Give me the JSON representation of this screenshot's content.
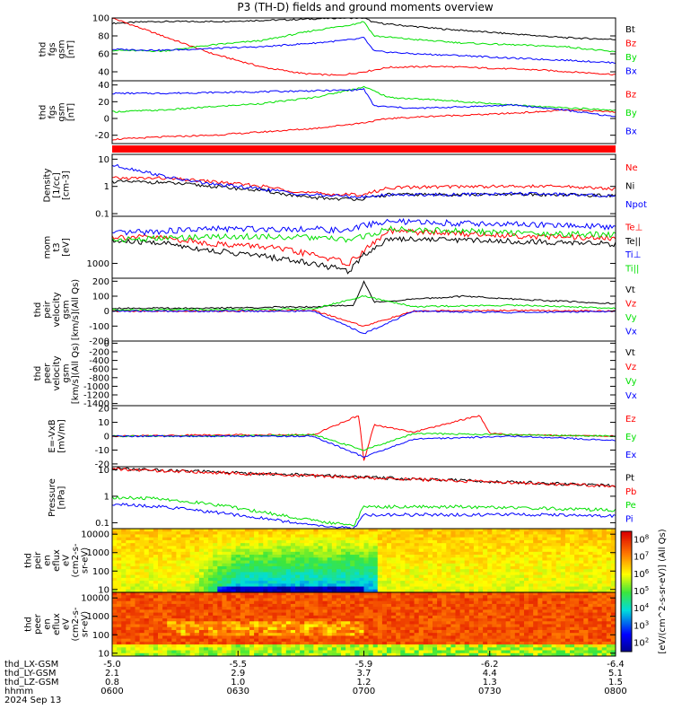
{
  "title": "P3 (TH-D) fields and ground moments overview",
  "colors": {
    "black": "#000000",
    "red": "#ff0000",
    "green": "#00e000",
    "blue": "#0000ff"
  },
  "chart_data": [
    {
      "type": "line",
      "ylabel": [
        "thd",
        "fgs",
        "gsm",
        "[nT]"
      ],
      "ylim": [
        30,
        100
      ],
      "yticks": [
        40,
        60,
        80,
        100
      ],
      "series": [
        {
          "name": "Bt",
          "color": "black",
          "x": [
            0,
            0.08,
            0.2,
            0.35,
            0.45,
            0.5,
            0.52,
            0.55,
            0.65,
            0.8,
            0.9,
            1.0
          ],
          "y": [
            94,
            96,
            96,
            98,
            100,
            100,
            95,
            93,
            88,
            82,
            78,
            76
          ]
        },
        {
          "name": "Bz",
          "color": "red",
          "x": [
            0,
            0.1,
            0.2,
            0.3,
            0.38,
            0.45,
            0.5,
            0.55,
            0.65,
            0.75,
            0.85,
            1.0
          ],
          "y": [
            100,
            80,
            60,
            45,
            38,
            36,
            40,
            45,
            46,
            44,
            42,
            37
          ]
        },
        {
          "name": "By",
          "color": "green",
          "x": [
            0,
            0.1,
            0.2,
            0.3,
            0.4,
            0.48,
            0.5,
            0.52,
            0.6,
            0.7,
            0.8,
            0.9,
            1.0
          ],
          "y": [
            64,
            63,
            70,
            75,
            86,
            93,
            96,
            80,
            76,
            72,
            70,
            68,
            62
          ]
        },
        {
          "name": "Bx",
          "color": "blue",
          "x": [
            0,
            0.1,
            0.2,
            0.3,
            0.4,
            0.48,
            0.5,
            0.52,
            0.6,
            0.7,
            0.8,
            0.9,
            1.0
          ],
          "y": [
            65,
            64,
            66,
            68,
            72,
            76,
            78,
            63,
            60,
            58,
            55,
            53,
            50
          ]
        }
      ]
    },
    {
      "type": "line",
      "ylabel": [
        "thd",
        "fgs",
        "gsm",
        "[nT]"
      ],
      "ylim": [
        -30,
        45
      ],
      "yticks": [
        -20,
        0,
        20,
        40
      ],
      "series": [
        {
          "name": "Bz",
          "color": "red",
          "x": [
            0,
            0.1,
            0.2,
            0.3,
            0.4,
            0.5,
            0.55,
            0.65,
            0.75,
            0.85,
            0.9,
            1.0
          ],
          "y": [
            -25,
            -22,
            -20,
            -16,
            -12,
            -5,
            0,
            3,
            5,
            8,
            10,
            8
          ]
        },
        {
          "name": "By",
          "color": "green",
          "x": [
            0,
            0.1,
            0.2,
            0.3,
            0.4,
            0.48,
            0.5,
            0.55,
            0.65,
            0.75,
            0.85,
            1.0
          ],
          "y": [
            8,
            10,
            14,
            18,
            25,
            35,
            38,
            25,
            22,
            18,
            14,
            10
          ]
        },
        {
          "name": "Bx",
          "color": "blue",
          "x": [
            0,
            0.1,
            0.2,
            0.3,
            0.4,
            0.48,
            0.5,
            0.52,
            0.6,
            0.7,
            0.8,
            0.9,
            1.0
          ],
          "y": [
            30,
            30,
            31,
            32,
            33,
            34,
            35,
            15,
            12,
            14,
            16,
            10,
            2
          ]
        }
      ]
    },
    {
      "type": "line",
      "ylabel": [
        "Density",
        "[1/cc]",
        "[cm-3]"
      ],
      "ylog": true,
      "ylim": [
        0.08,
        15
      ],
      "yticks": [
        0.1,
        1.0,
        10.0
      ],
      "series": [
        {
          "name": "Ne",
          "color": "red",
          "x": [
            0,
            0.1,
            0.2,
            0.3,
            0.38,
            0.45,
            0.5,
            0.55,
            0.7,
            0.8,
            0.9,
            1.0
          ],
          "y": [
            2,
            2,
            1.5,
            1.0,
            0.6,
            0.5,
            0.5,
            0.9,
            1.0,
            1.0,
            1.0,
            0.8
          ]
        },
        {
          "name": "Ni",
          "color": "black",
          "x": [
            0,
            0.1,
            0.2,
            0.3,
            0.38,
            0.45,
            0.5,
            0.55,
            0.7,
            0.8,
            0.9,
            1.0
          ],
          "y": [
            1.5,
            1.4,
            1.0,
            0.7,
            0.4,
            0.35,
            0.35,
            0.5,
            0.5,
            0.5,
            0.5,
            0.45
          ]
        },
        {
          "name": "Npot",
          "color": "blue",
          "x": [
            0,
            0.05,
            0.12,
            0.2,
            0.3,
            0.38,
            0.45,
            0.5,
            0.55,
            0.7,
            0.8,
            0.9,
            1.0
          ],
          "y": [
            6,
            4,
            2,
            1.2,
            0.8,
            0.5,
            0.45,
            0.4,
            0.5,
            0.5,
            0.55,
            0.5,
            0.45
          ]
        }
      ]
    },
    {
      "type": "line",
      "ylabel": [
        "mom",
        "t3",
        "[eV]"
      ],
      "ylog": true,
      "ylim": [
        500,
        9000
      ],
      "yticks": [
        1000
      ],
      "series": [
        {
          "name": "Te⊥",
          "color": "red",
          "x": [
            0,
            0.1,
            0.2,
            0.3,
            0.4,
            0.47,
            0.5,
            0.55,
            0.7,
            0.85,
            1.0
          ],
          "y": [
            3500,
            3300,
            2500,
            2200,
            1500,
            1000,
            1800,
            4500,
            4000,
            3500,
            3200
          ]
        },
        {
          "name": "Te||",
          "color": "black",
          "x": [
            0,
            0.1,
            0.2,
            0.3,
            0.4,
            0.47,
            0.5,
            0.55,
            0.7,
            0.85,
            1.0
          ],
          "y": [
            2800,
            2600,
            1800,
            1400,
            1000,
            700,
            1500,
            3200,
            3000,
            2700,
            2500
          ]
        },
        {
          "name": "Ti⊥",
          "color": "blue",
          "x": [
            0,
            0.1,
            0.2,
            0.3,
            0.4,
            0.47,
            0.5,
            0.55,
            0.7,
            0.85,
            1.0
          ],
          "y": [
            4000,
            4500,
            5000,
            5000,
            5000,
            4500,
            6000,
            7000,
            6500,
            6000,
            5500
          ]
        },
        {
          "name": "Ti||",
          "color": "green",
          "x": [
            0,
            0.1,
            0.2,
            0.3,
            0.4,
            0.47,
            0.5,
            0.55,
            0.7,
            0.85,
            1.0
          ],
          "y": [
            3000,
            3200,
            3500,
            3500,
            3300,
            3000,
            3500,
            5000,
            4500,
            4000,
            3800
          ]
        }
      ]
    },
    {
      "type": "line",
      "ylabel": [
        "thd",
        "peir",
        "velocity",
        "gsm",
        "[km/s](All Qs)"
      ],
      "ylim": [
        -200,
        220
      ],
      "yticks": [
        -200,
        -100,
        0,
        100,
        200
      ],
      "series": [
        {
          "name": "Vt",
          "color": "black",
          "x": [
            0,
            0.2,
            0.4,
            0.48,
            0.5,
            0.52,
            0.6,
            0.7,
            0.8,
            1.0
          ],
          "y": [
            20,
            20,
            30,
            40,
            200,
            60,
            80,
            100,
            80,
            50
          ]
        },
        {
          "name": "Vz",
          "color": "red",
          "x": [
            0,
            0.2,
            0.4,
            0.5,
            0.6,
            0.8,
            1.0
          ],
          "y": [
            0,
            0,
            5,
            -100,
            0,
            5,
            0
          ]
        },
        {
          "name": "Vy",
          "color": "green",
          "x": [
            0,
            0.2,
            0.4,
            0.5,
            0.6,
            0.8,
            1.0
          ],
          "y": [
            10,
            10,
            15,
            100,
            30,
            40,
            20
          ]
        },
        {
          "name": "Vx",
          "color": "blue",
          "x": [
            0,
            0.2,
            0.4,
            0.5,
            0.6,
            0.8,
            1.0
          ],
          "y": [
            0,
            0,
            0,
            -150,
            0,
            -10,
            0
          ]
        }
      ]
    },
    {
      "type": "line",
      "ylabel": [
        "thd",
        "peer",
        "velocity",
        "gsm",
        "[km/s](All Qs)"
      ],
      "ylim": [
        -1450,
        50
      ],
      "yticks": [
        0,
        -200,
        -400,
        -600,
        -800,
        -1000,
        -1200,
        -1400
      ],
      "legend_only": [
        "Vt",
        "Vz",
        "Vy",
        "Vx"
      ],
      "legend_colors": [
        "black",
        "red",
        "green",
        "blue"
      ],
      "series": []
    },
    {
      "type": "line",
      "ylabel": [
        "E=-VxB",
        "[mV/m]"
      ],
      "ylim": [
        -22,
        22
      ],
      "yticks": [
        -20,
        -10,
        0,
        10,
        20
      ],
      "series": [
        {
          "name": "Ez",
          "color": "red",
          "x": [
            0,
            0.2,
            0.4,
            0.49,
            0.5,
            0.52,
            0.6,
            0.73,
            0.75,
            0.8,
            1.0
          ],
          "y": [
            0,
            1,
            1,
            15,
            -18,
            8,
            3,
            15,
            2,
            1,
            0
          ]
        },
        {
          "name": "Ey",
          "color": "green",
          "x": [
            0,
            0.2,
            0.4,
            0.5,
            0.6,
            0.8,
            1.0
          ],
          "y": [
            0,
            0,
            1,
            -10,
            2,
            1,
            0
          ]
        },
        {
          "name": "Ex",
          "color": "blue",
          "x": [
            0,
            0.2,
            0.4,
            0.5,
            0.6,
            0.8,
            1.0
          ],
          "y": [
            0,
            0,
            0,
            -15,
            -2,
            0,
            -3
          ]
        }
      ]
    },
    {
      "type": "line",
      "ylabel": [
        "Pressure",
        "[nPa]"
      ],
      "ylog": true,
      "ylim": [
        0.06,
        13
      ],
      "yticks": [
        0.1,
        1.0,
        10.0
      ],
      "series": [
        {
          "name": "Pt",
          "color": "black",
          "x": [
            0,
            1.0
          ],
          "y": [
            11,
            2.5
          ]
        },
        {
          "name": "Pb",
          "color": "red",
          "x": [
            0,
            1.0
          ],
          "y": [
            10.5,
            2.4
          ]
        },
        {
          "name": "Pe",
          "color": "green",
          "x": [
            0,
            0.1,
            0.2,
            0.3,
            0.4,
            0.48,
            0.5,
            0.55,
            0.7,
            0.85,
            1.0
          ],
          "y": [
            0.9,
            0.8,
            0.5,
            0.25,
            0.12,
            0.08,
            0.4,
            0.4,
            0.4,
            0.35,
            0.3
          ]
        },
        {
          "name": "Pi",
          "color": "blue",
          "x": [
            0,
            0.1,
            0.2,
            0.3,
            0.4,
            0.48,
            0.5,
            0.55,
            0.7,
            0.85,
            1.0
          ],
          "y": [
            0.5,
            0.4,
            0.25,
            0.15,
            0.08,
            0.06,
            0.2,
            0.2,
            0.2,
            0.2,
            0.18
          ]
        }
      ]
    },
    {
      "type": "heatmap",
      "ylabel": [
        "thd",
        "peir",
        "en",
        "eflux",
        "eV",
        "(cm2-s-",
        "sr-eV)"
      ],
      "ylog": true,
      "ylim": [
        7,
        20000
      ],
      "yticks": [
        10,
        100,
        1000,
        10000
      ],
      "yticklabels": [
        "10",
        "100",
        "1000",
        "10000"
      ]
    },
    {
      "type": "heatmap",
      "ylabel": [
        "thd",
        "peer",
        "en",
        "eflux",
        "eV",
        "(cm2-s-",
        "sr-eV)"
      ],
      "ylog": true,
      "ylim": [
        7,
        20000
      ],
      "yticks": [
        10,
        100,
        1000,
        10000
      ],
      "yticklabels": [
        "10",
        "100",
        "1000",
        "10000"
      ]
    }
  ],
  "colorbar": {
    "label": "[eV/(cm^2-s-sr-eV)] (All Qs)",
    "ticks": [
      "10^2",
      "10^3",
      "10^4",
      "10^5",
      "10^6",
      "10^7",
      "10^8"
    ]
  },
  "xaxis": {
    "row_labels": [
      "thd_LX-GSM",
      "thd_LY-GSM",
      "thd_LZ-GSM",
      "hhmm",
      "2024 Sep 13"
    ],
    "columns": [
      [
        "-5.0",
        "2.1",
        "0.8",
        "0600"
      ],
      [
        "-5.5",
        "2.9",
        "1.0",
        "0630"
      ],
      [
        "-5.9",
        "3.7",
        "1.2",
        "0700"
      ],
      [
        "-6.2",
        "4.4",
        "1.3",
        "0730"
      ],
      [
        "-6.4",
        "5.1",
        "1.5",
        "0800"
      ]
    ]
  }
}
